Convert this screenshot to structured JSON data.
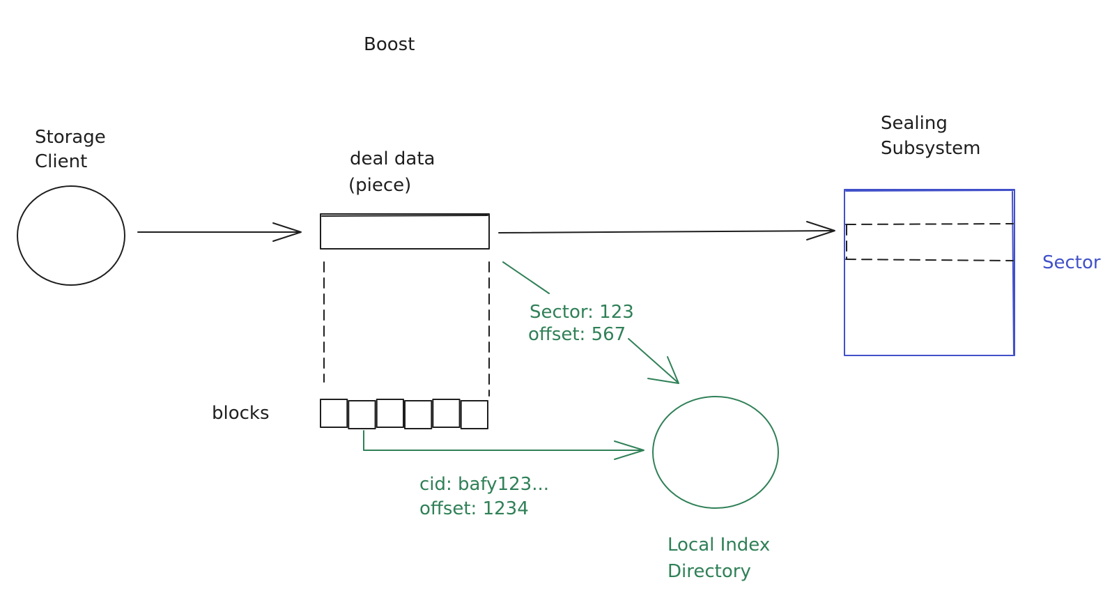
{
  "title": "Boost",
  "nodes": {
    "storage_client": {
      "line1": "Storage",
      "line2": "Client"
    },
    "deal_data": {
      "line1": "deal data",
      "line2": "(piece)"
    },
    "blocks": {
      "label": "blocks",
      "count": 6
    },
    "sealing_subsystem": {
      "line1": "Sealing",
      "line2": "Subsystem"
    },
    "sector": {
      "label": "Sector"
    },
    "local_index_directory": {
      "line1": "Local Index",
      "line2": "Directory"
    }
  },
  "edges": {
    "piece_to_lid": {
      "line1": "Sector: 123",
      "line2": "offset: 567"
    },
    "blocks_to_lid": {
      "line1": "cid: bafy123...",
      "line2": "offset: 1234"
    }
  },
  "colors": {
    "ink": "#1e1e1e",
    "green": "#2f8057",
    "blue": "#4150c9"
  }
}
